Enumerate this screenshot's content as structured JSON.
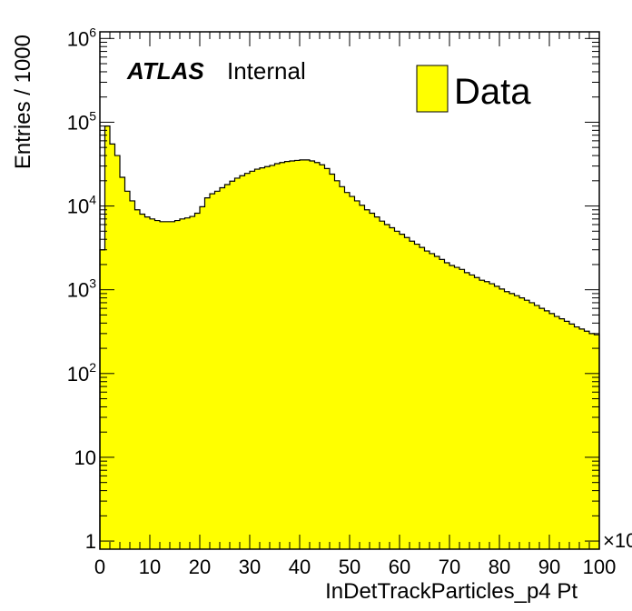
{
  "chart_data": {
    "type": "bar",
    "histogram": true,
    "title": "",
    "xlabel": "InDetTrackParticles_p4 Pt",
    "ylabel": "Entries / 1000",
    "x_multiplier_label": "×10",
    "xlim": [
      0,
      100
    ],
    "ylim": [
      0.8,
      1200000
    ],
    "yscale": "log",
    "x_ticks": [
      0,
      10,
      20,
      30,
      40,
      50,
      60,
      70,
      80,
      90,
      100
    ],
    "y_ticks": [
      {
        "value": 1,
        "base": "1",
        "exp": ""
      },
      {
        "value": 10,
        "base": "10",
        "exp": ""
      },
      {
        "value": 100,
        "base": "10",
        "exp": "2"
      },
      {
        "value": 1000,
        "base": "10",
        "exp": "3"
      },
      {
        "value": 10000,
        "base": "10",
        "exp": "4"
      },
      {
        "value": 100000,
        "base": "10",
        "exp": "5"
      },
      {
        "value": 1000000,
        "base": "10",
        "exp": "6"
      }
    ],
    "annotation": {
      "atlas": "ATLAS",
      "label": "Internal"
    },
    "series": [
      {
        "name": "Data",
        "color": "#ffff00",
        "bin_width": 1,
        "bin_start": 0,
        "values": [
          3000,
          90000,
          55000,
          40000,
          22000,
          15000,
          11500,
          9000,
          8000,
          7400,
          7000,
          6700,
          6500,
          6500,
          6500,
          6700,
          7000,
          7200,
          7500,
          8200,
          9800,
          12500,
          14000,
          15000,
          16500,
          18000,
          19800,
          21500,
          23000,
          24500,
          26000,
          27500,
          28500,
          29500,
          30500,
          32000,
          33000,
          34000,
          34500,
          35000,
          35500,
          35500,
          34500,
          33000,
          31000,
          28000,
          24000,
          20000,
          17000,
          14500,
          13000,
          11500,
          10200,
          9000,
          8200,
          7400,
          6600,
          6000,
          5500,
          5000,
          4600,
          4200,
          3800,
          3500,
          3200,
          2900,
          2700,
          2500,
          2300,
          2100,
          1950,
          1850,
          1750,
          1600,
          1500,
          1400,
          1300,
          1250,
          1180,
          1100,
          1020,
          950,
          900,
          850,
          800,
          750,
          700,
          650,
          600,
          560,
          520,
          480,
          450,
          420,
          390,
          360,
          340,
          320,
          300,
          290
        ]
      }
    ],
    "legend": {
      "position": "top-right",
      "entries": [
        "Data"
      ]
    }
  }
}
